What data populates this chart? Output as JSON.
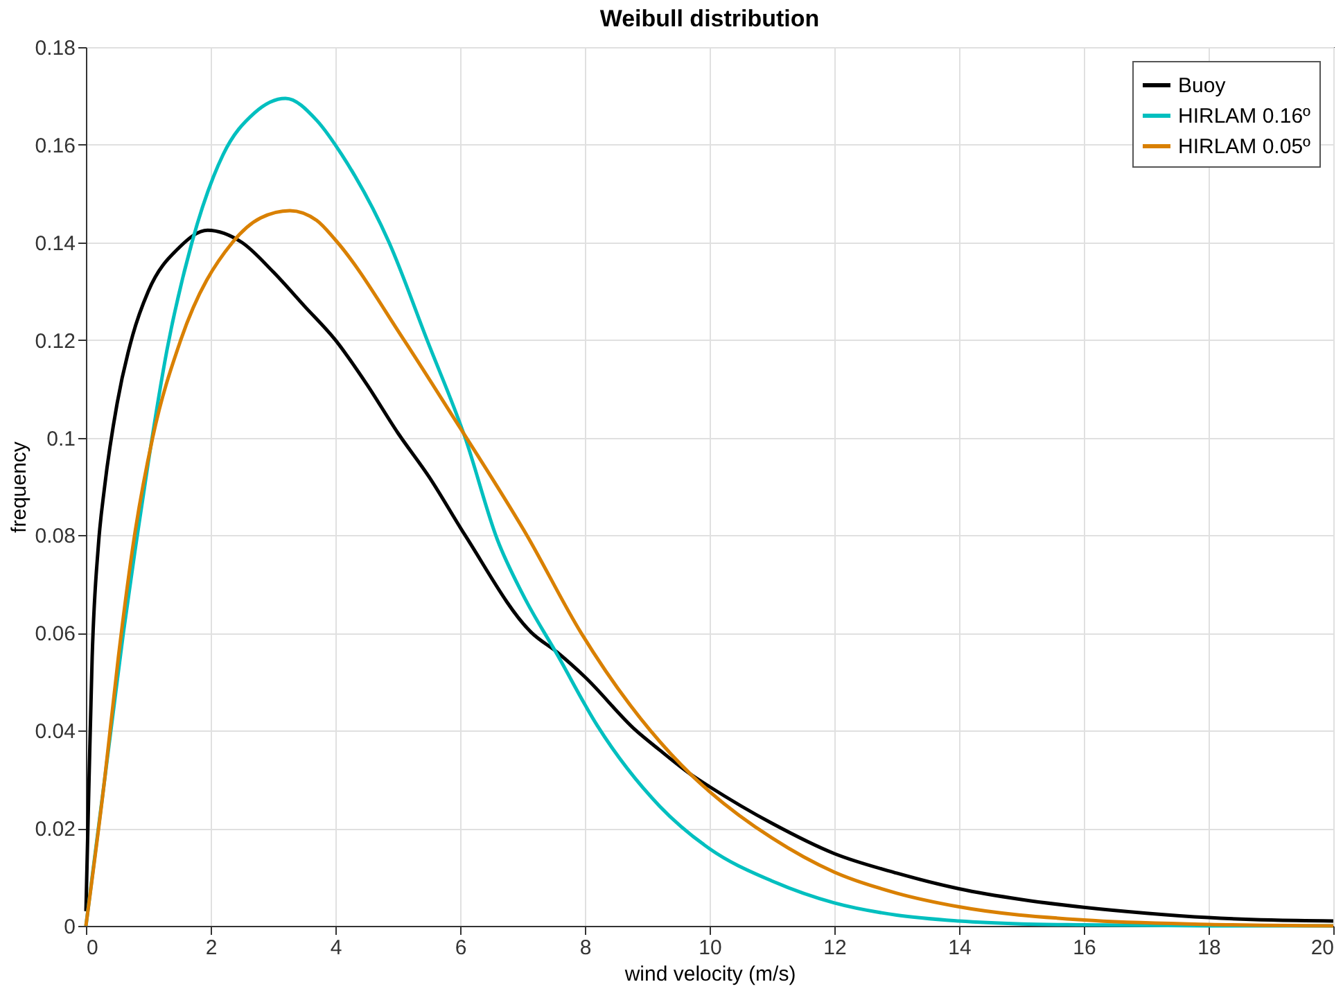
{
  "chart_data": {
    "type": "line",
    "title": "Weibull distribution",
    "xlabel": "wind velocity (m/s)",
    "ylabel": "frequency",
    "xlim": [
      0,
      20
    ],
    "xticks": [
      0,
      2,
      4,
      6,
      8,
      10,
      12,
      14,
      16,
      18,
      20
    ],
    "ylim": [
      0,
      0.18
    ],
    "yticks": [
      0,
      0.02,
      0.04,
      0.06,
      0.08,
      0.1,
      0.12,
      0.14,
      0.16,
      0.18
    ],
    "grid": true,
    "legend": "top right",
    "marker": "none",
    "line_style": "solid",
    "series": [
      {
        "name": "Buoy",
        "color": "#000000",
        "x": [
          0,
          0.05,
          0.1,
          0.2,
          0.3,
          0.5,
          0.75,
          1,
          1.5,
          1.95,
          2.5,
          3,
          3.5,
          4,
          4.5,
          5,
          5.5,
          6.08,
          7.15,
          7.56,
          8,
          8.82,
          9.2,
          9.7,
          10,
          11,
          12,
          13,
          14,
          15,
          16,
          17,
          18,
          19,
          20
        ],
        "values": [
          0.003,
          0.03,
          0.055,
          0.078,
          0.09,
          0.107,
          0.121,
          0.13,
          0.139,
          0.1425,
          0.14,
          0.134,
          0.127,
          0.12,
          0.111,
          0.101,
          0.092,
          0.08,
          0.06,
          0.056,
          0.051,
          0.04,
          0.036,
          0.031,
          0.0285,
          0.021,
          0.0148,
          0.0108,
          0.0076,
          0.0054,
          0.0038,
          0.0026,
          0.0017,
          0.0012,
          0.001
        ]
      },
      {
        "name": "HIRLAM 0.16º",
        "color": "#00bfbf",
        "x": [
          0,
          0.3,
          0.45,
          0.6,
          0.8,
          1.0,
          1.3,
          1.7,
          2.2,
          2.7,
          3.2,
          3.7,
          4.1,
          4.86,
          5.47,
          6.08,
          6.6,
          7.0,
          7.56,
          8.2,
          9.2,
          10,
          11,
          12,
          13,
          14,
          15,
          16,
          18,
          20
        ],
        "values": [
          0,
          0.03,
          0.045,
          0.06,
          0.078,
          0.095,
          0.118,
          0.14,
          0.158,
          0.1665,
          0.1695,
          0.165,
          0.158,
          0.14,
          0.12,
          0.1,
          0.079,
          0.068,
          0.0555,
          0.041,
          0.0245,
          0.0158,
          0.0092,
          0.0047,
          0.0022,
          0.001,
          0.0004,
          0.0002,
          0,
          0
        ]
      },
      {
        "name": "HIRLAM 0.05º",
        "color": "#d98000",
        "x": [
          0,
          0.3,
          0.52,
          0.78,
          1.07,
          1.52,
          2.35,
          2.8,
          3.27,
          3.7,
          4.0,
          5.1,
          6.0,
          6.1,
          7.07,
          7.94,
          9.05,
          9.7,
          10,
          11,
          12,
          13,
          14,
          16,
          18,
          20
        ],
        "values": [
          0,
          0.03,
          0.055,
          0.08,
          0.1,
          0.12,
          0.14,
          0.145,
          0.1465,
          0.1445,
          0.1405,
          0.12,
          0.102,
          0.1,
          0.08,
          0.06,
          0.04,
          0.031,
          0.0275,
          0.018,
          0.011,
          0.0067,
          0.0039,
          0.0012,
          0.0003,
          0
        ]
      }
    ]
  }
}
